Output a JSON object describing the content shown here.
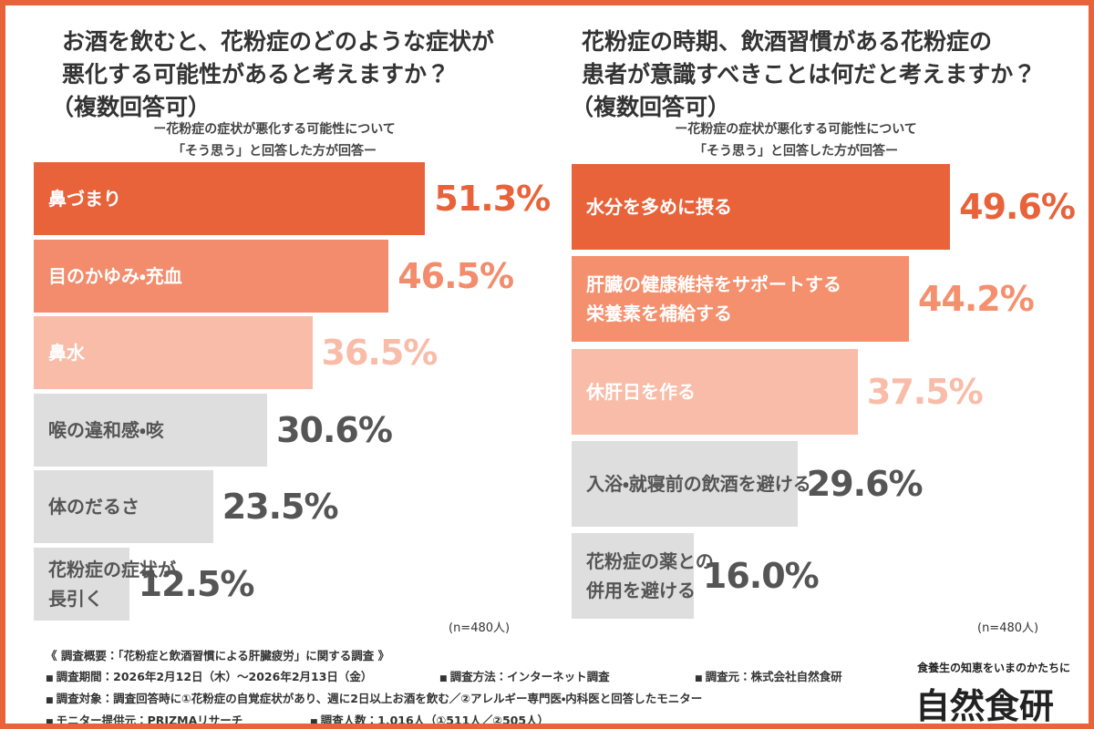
{
  "chart_data": [
    {
      "type": "bar",
      "orientation": "horizontal",
      "title": [
        "お酒を飲むと、花粉症のどのような症状が",
        "悪化する可能性があると考えますか？",
        "（複数回答可）"
      ],
      "subtitle": [
        "ー花粉症の症状が悪化する可能性について",
        "「そう思う」と回答した方が回答ー"
      ],
      "categories": [
        "鼻づまり",
        "目のかゆみ・充血",
        "鼻水",
        "喉の違和感・咳",
        "体のだるさ",
        "花粉症の症状が\n長引く"
      ],
      "values": [
        51.3,
        46.5,
        36.5,
        30.6,
        23.5,
        12.5
      ],
      "value_labels": [
        "51.3%",
        "46.5%",
        "36.5%",
        "30.6%",
        "23.5%",
        "12.5%"
      ],
      "colors": [
        "#e8633a",
        "#f28c6c",
        "#f8bca8",
        "#dedede",
        "#dedede",
        "#dedede"
      ],
      "label_colors": [
        "#ffffff",
        "#ffffff",
        "#ffffff",
        "#555555",
        "#555555",
        "#555555"
      ],
      "value_label_colors": [
        "#e8633a",
        "#f28c6c",
        "#f8bca8",
        "#555555",
        "#555555",
        "#555555"
      ],
      "note": "(n=480人)"
    },
    {
      "type": "bar",
      "orientation": "horizontal",
      "title": [
        "花粉症の時期、飲酒習慣がある花粉症の",
        "患者が意識すべきことは何だと考えますか？",
        "（複数回答可）"
      ],
      "subtitle": [
        "ー花粉症の症状が悪化する可能性について",
        "「そう思う」と回答した方が回答ー"
      ],
      "categories": [
        "水分を多めに摂る",
        "肝臓の健康維持をサポートする\n栄養素を補給する",
        "休肝日を作る",
        "入浴・就寝前の飲酒を避ける",
        "花粉症の薬との\n併用を避ける"
      ],
      "values": [
        49.6,
        44.2,
        37.5,
        29.6,
        16.0
      ],
      "value_labels": [
        "49.6%",
        "44.2%",
        "37.5%",
        "29.6%",
        "16.0%"
      ],
      "colors": [
        "#e8633a",
        "#f4906e",
        "#f8bca8",
        "#dedede",
        "#dedede"
      ],
      "label_colors": [
        "#ffffff",
        "#ffffff",
        "#ffffff",
        "#555555",
        "#555555"
      ],
      "value_label_colors": [
        "#e8633a",
        "#f4906e",
        "#f8bca8",
        "#555555",
        "#555555"
      ],
      "note": "(n=480人)"
    }
  ],
  "footer": {
    "heading": "《 調査概要：「花粉症と飲酒習慣による肝臓疲労」に関する調査 》",
    "items": [
      "調査期間：2026年2月12日（木）～2026年2月13日（金）",
      "調査方法：インターネット調査",
      "調査元：株式会社自然食研",
      "調査対象：調査回答時に①花粉症の自覚症状があり、週に2日以上お酒を飲む／②アレルギー専門医・内科医と回答したモニター",
      "モニター提供元：PRIZMAリサーチ",
      "調査人数：1,016人（①511人／②505人）"
    ]
  },
  "brand": {
    "tagline": "食養生の知恵をいまのかたちに",
    "name": "自然食研"
  }
}
